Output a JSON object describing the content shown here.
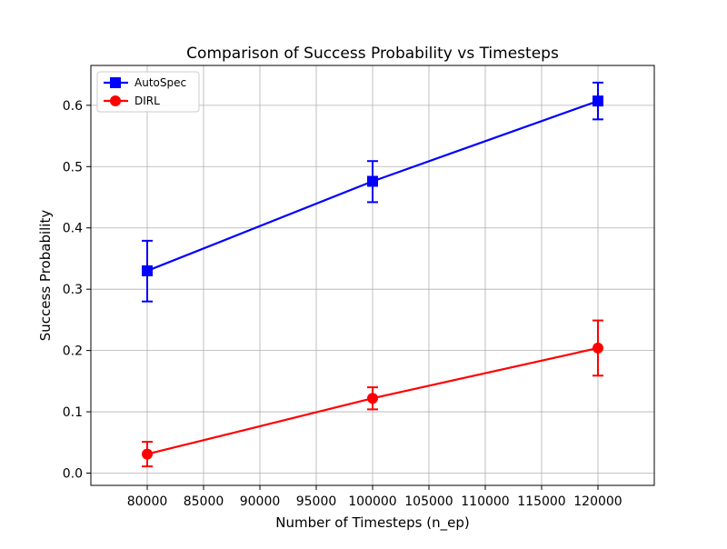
{
  "chart_data": {
    "type": "line",
    "title": "Comparison of Success Probability vs Timesteps",
    "xlabel": "Number of Timesteps (n_ep)",
    "ylabel": "Success Probability",
    "x": [
      80000,
      100000,
      120000
    ],
    "xlim": [
      75000,
      125000
    ],
    "ylim": [
      -0.02,
      0.665
    ],
    "xticks": [
      80000,
      85000,
      90000,
      95000,
      100000,
      105000,
      110000,
      115000,
      120000
    ],
    "yticks": [
      0.0,
      0.1,
      0.2,
      0.3,
      0.4,
      0.5,
      0.6
    ],
    "ytick_labels": [
      "0.0",
      "0.1",
      "0.2",
      "0.3",
      "0.4",
      "0.5",
      "0.6"
    ],
    "grid": true,
    "legend_position": "top-left",
    "series": [
      {
        "name": "AutoSpec",
        "color": "#0000ff",
        "marker": "square",
        "values": [
          0.33,
          0.476,
          0.607
        ],
        "error_low": [
          0.28,
          0.442,
          0.577
        ],
        "error_high": [
          0.379,
          0.509,
          0.637
        ]
      },
      {
        "name": "DIRL",
        "color": "#ff0000",
        "marker": "circle",
        "values": [
          0.031,
          0.122,
          0.204
        ],
        "error_low": [
          0.011,
          0.104,
          0.159
        ],
        "error_high": [
          0.051,
          0.14,
          0.249
        ]
      }
    ]
  }
}
